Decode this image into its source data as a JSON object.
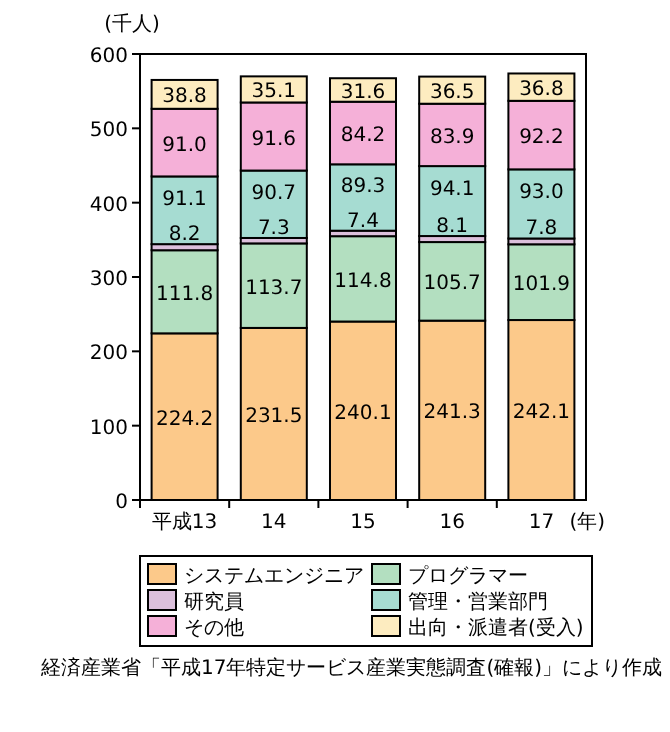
{
  "chart_data": {
    "type": "bar",
    "stacked": true,
    "ylabel": "(千人)",
    "xlabel": "(年)",
    "categories": [
      "平成13",
      "14",
      "15",
      "16",
      "17"
    ],
    "series": [
      {
        "name": "システムエンジニア",
        "color": "#fcc98a",
        "values": [
          224.2,
          231.5,
          240.1,
          241.3,
          242.1
        ],
        "value_labels": [
          "224.2",
          "231.5",
          "240.1",
          "241.3",
          "242.1"
        ]
      },
      {
        "name": "プログラマー",
        "color": "#b3dfc0",
        "values": [
          111.8,
          113.7,
          114.8,
          105.7,
          101.9
        ],
        "value_labels": [
          "111.8",
          "113.7",
          "114.8",
          "105.7",
          "101.9"
        ]
      },
      {
        "name": "研究員",
        "color": "#dcc0dc",
        "values": [
          8.2,
          7.3,
          7.4,
          8.1,
          7.8
        ],
        "value_labels": [
          "8.2",
          "7.3",
          "7.4",
          "8.1",
          "7.8"
        ]
      },
      {
        "name": "管理・営業部門",
        "color": "#a6dcd2",
        "values": [
          91.1,
          90.7,
          89.3,
          94.1,
          93.0
        ],
        "value_labels": [
          "91.1",
          "90.7",
          "89.3",
          "94.1",
          "93.0"
        ]
      },
      {
        "name": "その他",
        "color": "#f5b0d8",
        "values": [
          91.0,
          91.6,
          84.2,
          83.9,
          92.2
        ],
        "value_labels": [
          "91.0",
          "91.6",
          "84.2",
          "83.9",
          "92.2"
        ]
      },
      {
        "name": "出向・派遣者(受入)",
        "color": "#fdecc0",
        "values": [
          38.8,
          35.1,
          31.6,
          36.5,
          36.8
        ],
        "value_labels": [
          "38.8",
          "35.1",
          "31.6",
          "36.5",
          "36.8"
        ]
      }
    ],
    "ylim": [
      0,
      600
    ],
    "yticks": [
      0,
      100,
      200,
      300,
      400,
      500,
      600
    ],
    "legend": "bottom",
    "grid": false,
    "annotations": [
      "経済産業省「平成17年特定サービス産業実態調査(確報)」により作成"
    ]
  }
}
